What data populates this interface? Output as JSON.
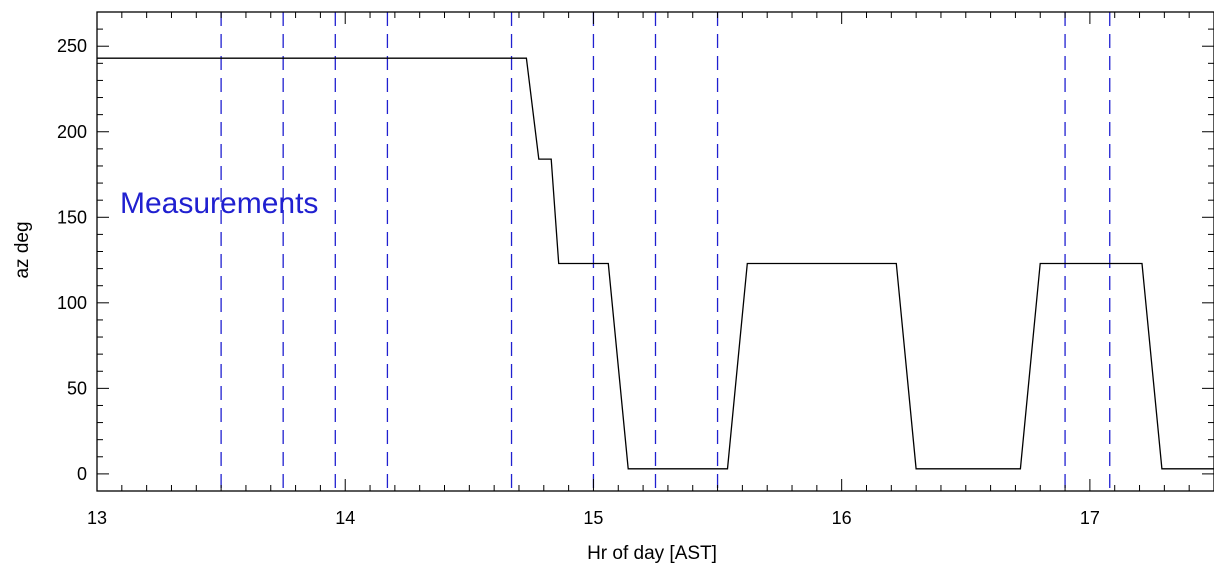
{
  "chart_data": {
    "type": "line",
    "title": "",
    "xlabel": "Hr of day [AST]",
    "ylabel": "az deg",
    "xlim": [
      13,
      17.5
    ],
    "ylim": [
      -10,
      270
    ],
    "x_ticks": [
      13,
      14,
      15,
      16,
      17
    ],
    "x_tick_labels": [
      "13",
      "14",
      "15",
      "16",
      "17"
    ],
    "y_ticks": [
      0,
      50,
      100,
      150,
      200,
      250
    ],
    "y_tick_labels": [
      "0",
      "50",
      "100",
      "150",
      "200",
      "250"
    ],
    "grid": false,
    "colors": {
      "series": "#000000",
      "measurement": "#2020d0"
    },
    "annotation": "Measurements",
    "series": [
      {
        "x": [
          13.0,
          14.73,
          14.78,
          14.83,
          14.86,
          15.06,
          15.14,
          15.54,
          15.62,
          16.22,
          16.3,
          16.72,
          16.8,
          17.21,
          17.29,
          17.5
        ],
        "y": [
          243,
          243,
          184,
          184,
          123,
          123,
          3,
          3,
          123,
          123,
          3,
          3,
          123,
          123,
          3,
          3
        ]
      }
    ],
    "measurement_lines": [
      13.5,
      13.75,
      13.96,
      14.17,
      14.67,
      15.0,
      15.25,
      15.5,
      16.9,
      17.08
    ]
  }
}
